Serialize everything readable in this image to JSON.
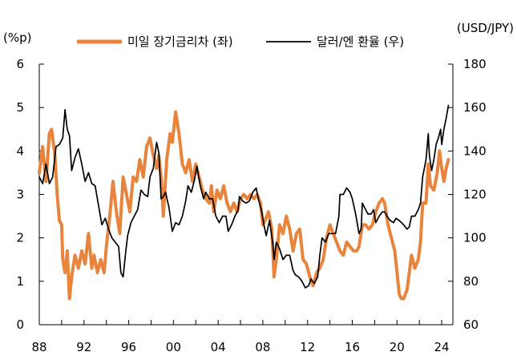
{
  "chart_data": {
    "type": "line",
    "left_unit": "(%p)",
    "right_unit": "(USD/JPY)",
    "x_ticks": [
      "88",
      "92",
      "96",
      "00",
      "04",
      "08",
      "12",
      "16",
      "20",
      "24"
    ],
    "x_range": [
      1988,
      2025
    ],
    "y_left": {
      "range": [
        0,
        6
      ],
      "ticks": [
        "0",
        "1",
        "2",
        "3",
        "4",
        "5",
        "6"
      ]
    },
    "y_right": {
      "range": [
        60,
        180
      ],
      "ticks": [
        "60",
        "80",
        "100",
        "120",
        "140",
        "160",
        "180"
      ]
    },
    "grid": false,
    "legend_position": "top",
    "series": [
      {
        "name": "미일 장기금리차 (좌)",
        "axis": "left",
        "color": "#E8843C",
        "points": [
          [
            1988.0,
            3.5
          ],
          [
            1988.3,
            4.1
          ],
          [
            1988.6,
            3.3
          ],
          [
            1988.9,
            4.4
          ],
          [
            1989.1,
            4.5
          ],
          [
            1989.4,
            3.9
          ],
          [
            1989.6,
            3.0
          ],
          [
            1989.8,
            2.4
          ],
          [
            1990.0,
            2.3
          ],
          [
            1990.1,
            1.5
          ],
          [
            1990.3,
            1.2
          ],
          [
            1990.5,
            1.7
          ],
          [
            1990.7,
            0.6
          ],
          [
            1990.9,
            1.1
          ],
          [
            1991.2,
            1.6
          ],
          [
            1991.5,
            1.3
          ],
          [
            1991.8,
            1.7
          ],
          [
            1992.1,
            1.4
          ],
          [
            1992.4,
            2.1
          ],
          [
            1992.7,
            1.3
          ],
          [
            1992.9,
            1.6
          ],
          [
            1993.2,
            1.2
          ],
          [
            1993.5,
            1.5
          ],
          [
            1993.8,
            1.2
          ],
          [
            1994.0,
            1.8
          ],
          [
            1994.3,
            2.5
          ],
          [
            1994.6,
            3.3
          ],
          [
            1994.9,
            2.6
          ],
          [
            1995.2,
            2.1
          ],
          [
            1995.5,
            3.4
          ],
          [
            1995.8,
            3.0
          ],
          [
            1996.1,
            2.6
          ],
          [
            1996.4,
            3.4
          ],
          [
            1996.7,
            3.3
          ],
          [
            1997.0,
            3.8
          ],
          [
            1997.3,
            3.4
          ],
          [
            1997.6,
            4.1
          ],
          [
            1997.9,
            4.3
          ],
          [
            1998.2,
            3.9
          ],
          [
            1998.5,
            3.6
          ],
          [
            1998.7,
            3.9
          ],
          [
            1998.9,
            3.4
          ],
          [
            1999.1,
            2.5
          ],
          [
            1999.4,
            3.8
          ],
          [
            1999.7,
            4.4
          ],
          [
            1999.9,
            4.2
          ],
          [
            2000.2,
            4.9
          ],
          [
            2000.5,
            4.4
          ],
          [
            2000.8,
            3.7
          ],
          [
            2001.1,
            3.5
          ],
          [
            2001.4,
            3.8
          ],
          [
            2001.7,
            3.3
          ],
          [
            2002.0,
            3.7
          ],
          [
            2002.3,
            3.4
          ],
          [
            2002.6,
            3.1
          ],
          [
            2002.9,
            2.9
          ],
          [
            2003.2,
            2.8
          ],
          [
            2003.4,
            3.2
          ],
          [
            2003.6,
            2.6
          ],
          [
            2003.9,
            3.1
          ],
          [
            2004.2,
            2.9
          ],
          [
            2004.5,
            3.2
          ],
          [
            2004.8,
            2.8
          ],
          [
            2005.1,
            2.6
          ],
          [
            2005.4,
            2.8
          ],
          [
            2005.7,
            2.6
          ],
          [
            2006.0,
            2.9
          ],
          [
            2006.3,
            3.0
          ],
          [
            2006.6,
            2.9
          ],
          [
            2006.9,
            3.0
          ],
          [
            2007.2,
            2.9
          ],
          [
            2007.5,
            3.0
          ],
          [
            2007.8,
            2.8
          ],
          [
            2008.0,
            2.3
          ],
          [
            2008.2,
            2.4
          ],
          [
            2008.5,
            2.6
          ],
          [
            2008.8,
            2.2
          ],
          [
            2009.0,
            1.1
          ],
          [
            2009.2,
            1.5
          ],
          [
            2009.5,
            2.3
          ],
          [
            2009.8,
            2.1
          ],
          [
            2010.1,
            2.5
          ],
          [
            2010.4,
            2.2
          ],
          [
            2010.7,
            1.7
          ],
          [
            2011.0,
            2.1
          ],
          [
            2011.3,
            2.2
          ],
          [
            2011.6,
            1.5
          ],
          [
            2011.9,
            1.4
          ],
          [
            2012.2,
            1.1
          ],
          [
            2012.5,
            0.9
          ],
          [
            2012.8,
            1.2
          ],
          [
            2013.1,
            1.3
          ],
          [
            2013.4,
            1.5
          ],
          [
            2013.7,
            2.0
          ],
          [
            2014.0,
            2.3
          ],
          [
            2014.3,
            2.1
          ],
          [
            2014.6,
            1.9
          ],
          [
            2014.9,
            1.7
          ],
          [
            2015.2,
            1.6
          ],
          [
            2015.5,
            1.9
          ],
          [
            2015.8,
            1.8
          ],
          [
            2016.1,
            1.7
          ],
          [
            2016.4,
            1.7
          ],
          [
            2016.6,
            1.8
          ],
          [
            2016.9,
            2.3
          ],
          [
            2017.2,
            2.3
          ],
          [
            2017.5,
            2.2
          ],
          [
            2017.8,
            2.3
          ],
          [
            2018.1,
            2.6
          ],
          [
            2018.4,
            2.8
          ],
          [
            2018.7,
            2.9
          ],
          [
            2018.9,
            2.8
          ],
          [
            2019.2,
            2.3
          ],
          [
            2019.5,
            2.0
          ],
          [
            2019.8,
            1.7
          ],
          [
            2020.0,
            1.2
          ],
          [
            2020.2,
            0.7
          ],
          [
            2020.4,
            0.6
          ],
          [
            2020.6,
            0.6
          ],
          [
            2020.9,
            0.8
          ],
          [
            2021.1,
            1.2
          ],
          [
            2021.3,
            1.6
          ],
          [
            2021.6,
            1.3
          ],
          [
            2021.9,
            1.5
          ],
          [
            2022.1,
            1.9
          ],
          [
            2022.3,
            2.8
          ],
          [
            2022.6,
            2.8
          ],
          [
            2022.8,
            3.7
          ],
          [
            2023.0,
            3.2
          ],
          [
            2023.3,
            3.1
          ],
          [
            2023.6,
            3.5
          ],
          [
            2023.8,
            4.0
          ],
          [
            2024.0,
            3.6
          ],
          [
            2024.2,
            3.3
          ],
          [
            2024.4,
            3.6
          ],
          [
            2024.6,
            3.8
          ]
        ]
      },
      {
        "name": "달러/엔 환율 (우)",
        "axis": "right",
        "color": "#000000",
        "points": [
          [
            1988.0,
            128
          ],
          [
            1988.3,
            125
          ],
          [
            1988.6,
            134
          ],
          [
            1988.9,
            125
          ],
          [
            1989.2,
            128
          ],
          [
            1989.5,
            142
          ],
          [
            1989.8,
            143
          ],
          [
            1990.1,
            146
          ],
          [
            1990.3,
            159
          ],
          [
            1990.5,
            150
          ],
          [
            1990.7,
            147
          ],
          [
            1990.9,
            131
          ],
          [
            1991.2,
            137
          ],
          [
            1991.5,
            141
          ],
          [
            1991.8,
            134
          ],
          [
            1992.1,
            126
          ],
          [
            1992.4,
            130
          ],
          [
            1992.7,
            125
          ],
          [
            1993.0,
            124
          ],
          [
            1993.3,
            115
          ],
          [
            1993.6,
            106
          ],
          [
            1993.9,
            109
          ],
          [
            1994.2,
            104
          ],
          [
            1994.5,
            100
          ],
          [
            1994.8,
            98
          ],
          [
            1995.1,
            96
          ],
          [
            1995.3,
            84
          ],
          [
            1995.5,
            82
          ],
          [
            1995.7,
            92
          ],
          [
            1995.9,
            101
          ],
          [
            1996.2,
            107
          ],
          [
            1996.5,
            110
          ],
          [
            1996.8,
            113
          ],
          [
            1997.1,
            122
          ],
          [
            1997.4,
            120
          ],
          [
            1997.7,
            119
          ],
          [
            1997.9,
            128
          ],
          [
            1998.2,
            132
          ],
          [
            1998.5,
            144
          ],
          [
            1998.7,
            139
          ],
          [
            1998.9,
            118
          ],
          [
            1999.1,
            119
          ],
          [
            1999.3,
            121
          ],
          [
            1999.6,
            114
          ],
          [
            1999.9,
            103
          ],
          [
            2000.2,
            107
          ],
          [
            2000.5,
            106
          ],
          [
            2000.8,
            110
          ],
          [
            2001.1,
            117
          ],
          [
            2001.3,
            124
          ],
          [
            2001.6,
            121
          ],
          [
            2001.9,
            127
          ],
          [
            2002.1,
            133
          ],
          [
            2002.4,
            124
          ],
          [
            2002.7,
            118
          ],
          [
            2002.9,
            121
          ],
          [
            2003.2,
            118
          ],
          [
            2003.5,
            118
          ],
          [
            2003.8,
            110
          ],
          [
            2004.1,
            107
          ],
          [
            2004.4,
            110
          ],
          [
            2004.7,
            110
          ],
          [
            2004.9,
            103
          ],
          [
            2005.2,
            106
          ],
          [
            2005.5,
            110
          ],
          [
            2005.8,
            113
          ],
          [
            2005.9,
            119
          ],
          [
            2006.2,
            117
          ],
          [
            2006.5,
            116
          ],
          [
            2006.8,
            117
          ],
          [
            2007.1,
            121
          ],
          [
            2007.4,
            123
          ],
          [
            2007.6,
            118
          ],
          [
            2007.9,
            112
          ],
          [
            2008.1,
            106
          ],
          [
            2008.3,
            101
          ],
          [
            2008.6,
            108
          ],
          [
            2008.9,
            97
          ],
          [
            2009.0,
            90
          ],
          [
            2009.2,
            98
          ],
          [
            2009.5,
            95
          ],
          [
            2009.8,
            90
          ],
          [
            2010.1,
            92
          ],
          [
            2010.4,
            92
          ],
          [
            2010.7,
            85
          ],
          [
            2010.9,
            83
          ],
          [
            2011.2,
            82
          ],
          [
            2011.5,
            80
          ],
          [
            2011.8,
            77
          ],
          [
            2012.1,
            78
          ],
          [
            2012.3,
            81
          ],
          [
            2012.6,
            79
          ],
          [
            2012.9,
            82
          ],
          [
            2013.1,
            92
          ],
          [
            2013.3,
            100
          ],
          [
            2013.6,
            98
          ],
          [
            2013.9,
            102
          ],
          [
            2014.2,
            102
          ],
          [
            2014.5,
            102
          ],
          [
            2014.8,
            110
          ],
          [
            2014.9,
            120
          ],
          [
            2015.2,
            120
          ],
          [
            2015.5,
            123
          ],
          [
            2015.8,
            121
          ],
          [
            2016.0,
            118
          ],
          [
            2016.3,
            111
          ],
          [
            2016.6,
            102
          ],
          [
            2016.8,
            104
          ],
          [
            2016.9,
            116
          ],
          [
            2017.1,
            114
          ],
          [
            2017.4,
            111
          ],
          [
            2017.7,
            111
          ],
          [
            2017.9,
            113
          ],
          [
            2018.1,
            107
          ],
          [
            2018.4,
            110
          ],
          [
            2018.7,
            112
          ],
          [
            2018.9,
            112
          ],
          [
            2019.1,
            110
          ],
          [
            2019.4,
            108
          ],
          [
            2019.7,
            107
          ],
          [
            2019.9,
            109
          ],
          [
            2020.2,
            108
          ],
          [
            2020.4,
            107
          ],
          [
            2020.6,
            106
          ],
          [
            2020.9,
            104
          ],
          [
            2021.1,
            105
          ],
          [
            2021.3,
            110
          ],
          [
            2021.6,
            110
          ],
          [
            2021.9,
            113
          ],
          [
            2022.1,
            116
          ],
          [
            2022.3,
            128
          ],
          [
            2022.6,
            136
          ],
          [
            2022.8,
            148
          ],
          [
            2022.9,
            138
          ],
          [
            2023.1,
            131
          ],
          [
            2023.3,
            136
          ],
          [
            2023.5,
            143
          ],
          [
            2023.7,
            146
          ],
          [
            2023.9,
            150
          ],
          [
            2024.0,
            143
          ],
          [
            2024.2,
            150
          ],
          [
            2024.4,
            155
          ],
          [
            2024.6,
            161
          ]
        ]
      }
    ]
  }
}
